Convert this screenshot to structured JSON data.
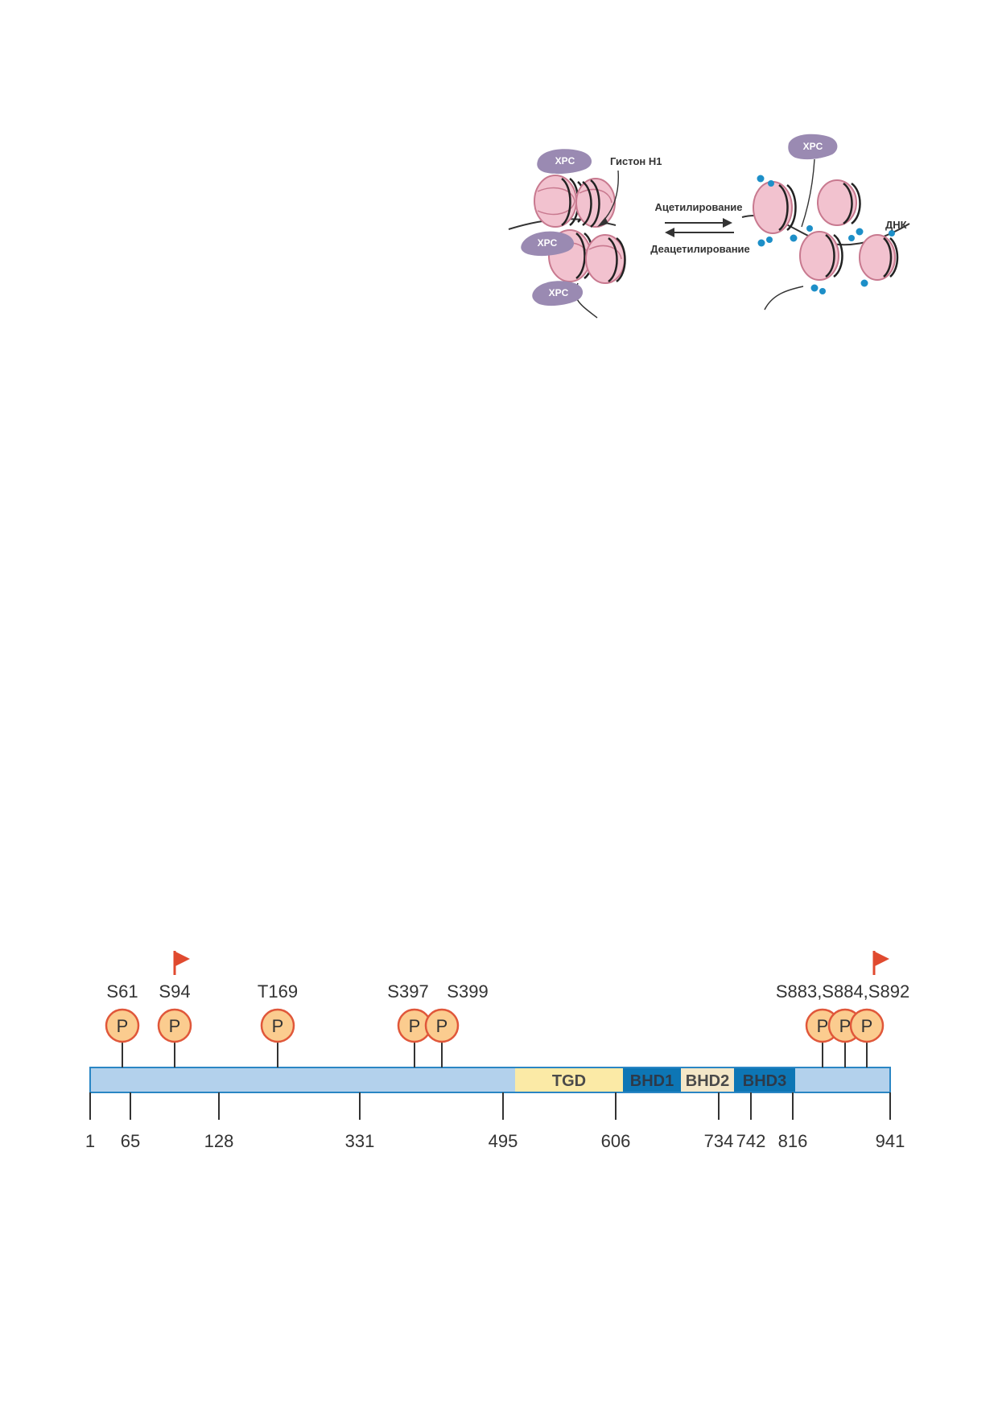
{
  "chromatin_figure": {
    "histone_label": "Гистон Н1",
    "acetylation_label": "Ацетилирование",
    "deacetylation_label": "Деацетилирование",
    "dna_label": "ДНК",
    "xpc_label": "XPC"
  },
  "protein_map": {
    "phosphosite_symbol": "P",
    "positions": [
      "1",
      "65",
      "128",
      "331",
      "495",
      "606",
      "734",
      "742",
      "816",
      "941"
    ],
    "domains": [
      {
        "label": "TGD",
        "color": "#fbeaa6",
        "text_color": "#4a4a4a"
      },
      {
        "label": "BHD1",
        "color": "#0d76b5",
        "text_color": "#2d3a4a"
      },
      {
        "label": "BHD2",
        "color": "#f4e7c8",
        "text_color": "#4a4a4a"
      },
      {
        "label": "BHD3",
        "color": "#0d76b5",
        "text_color": "#2d3a4a"
      }
    ],
    "site_labels": [
      "S61",
      "S94",
      "T169",
      "S397",
      "S399",
      "S883,S884,S892"
    ],
    "bar_color": "#b3d1ec",
    "bar_border": "#2a86c4",
    "flag_color": "#e04a2f",
    "phospho_fill": "#fbcc8f",
    "phospho_stroke": "#e0573a"
  }
}
